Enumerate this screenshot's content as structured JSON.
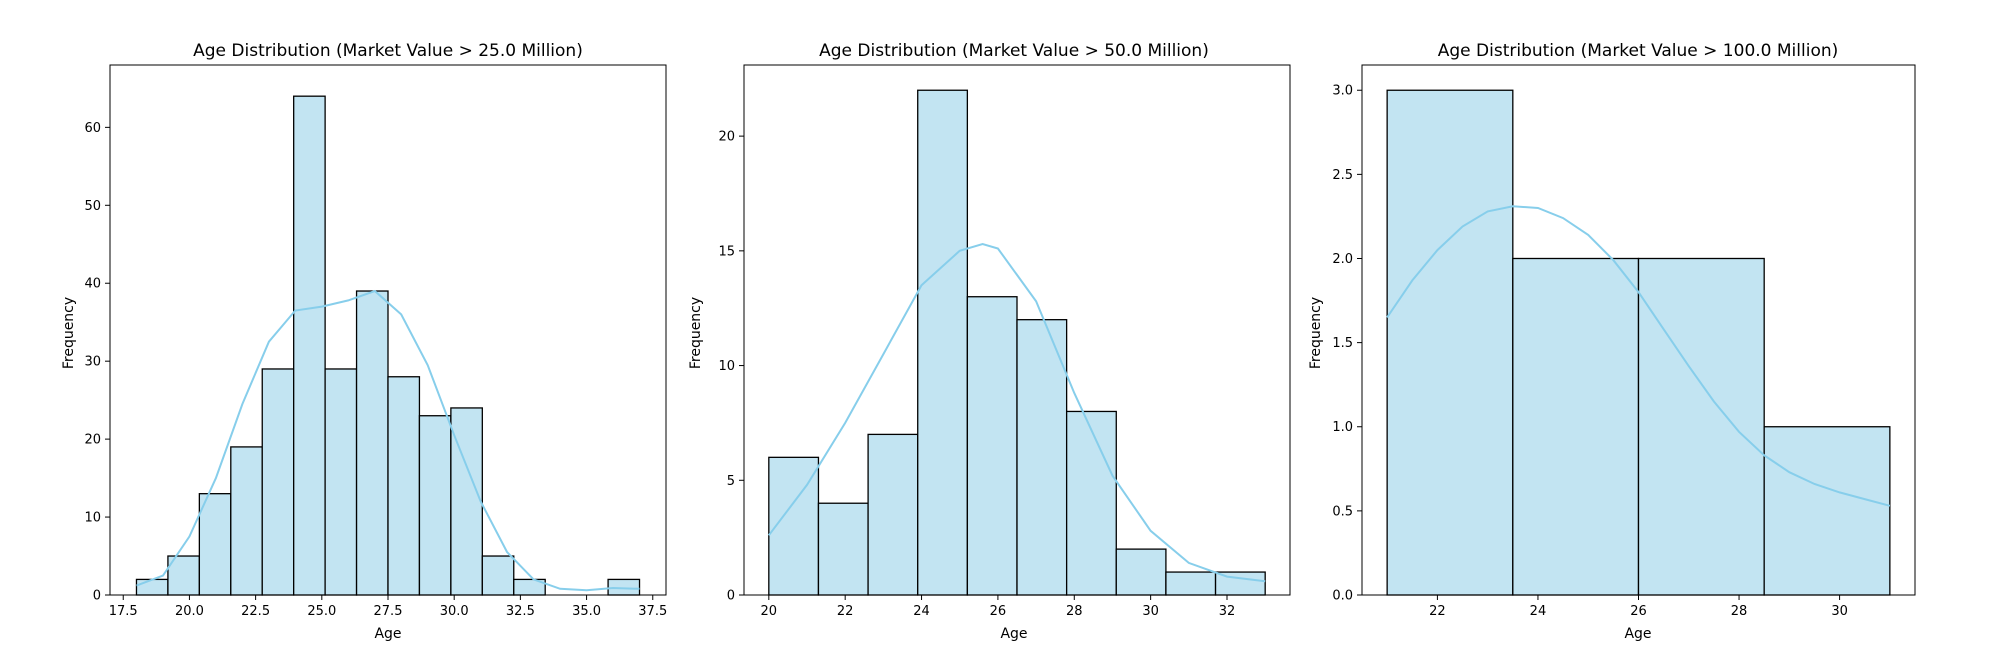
{
  "colors": {
    "bar_fill": "#c2e4f2",
    "bar_edge": "#000000",
    "kde_line": "#87ceeb"
  },
  "chart_data": [
    {
      "type": "bar",
      "subtype": "histogram-with-kde",
      "title": "Age Distribution (Market Value > 25.0 Million)",
      "xlabel": "Age",
      "ylabel": "Frequency",
      "xlim": [
        17.0,
        38.0
      ],
      "ylim": [
        0,
        68
      ],
      "xticks": [
        17.5,
        20.0,
        22.5,
        25.0,
        27.5,
        30.0,
        32.5,
        35.0,
        37.5
      ],
      "xtick_labels": [
        "17.5",
        "20.0",
        "22.5",
        "25.0",
        "27.5",
        "30.0",
        "32.5",
        "35.0",
        "37.5"
      ],
      "yticks": [
        0,
        10,
        20,
        30,
        40,
        50,
        60
      ],
      "ytick_labels": [
        "0",
        "10",
        "20",
        "30",
        "40",
        "50",
        "60"
      ],
      "bin_edges": [
        18.0,
        19.1875,
        20.375,
        21.5625,
        22.75,
        23.9375,
        25.125,
        26.3125,
        27.5,
        28.6875,
        29.875,
        31.0625,
        32.25,
        33.4375,
        34.625,
        35.8125,
        37.0
      ],
      "values": [
        2,
        5,
        13,
        19,
        29,
        64,
        29,
        39,
        28,
        23,
        24,
        5,
        2,
        0,
        0,
        2
      ],
      "kde": {
        "x": [
          18.0,
          19.0,
          20.0,
          21.0,
          22.0,
          23.0,
          24.0,
          25.0,
          26.0,
          27.0,
          28.0,
          29.0,
          30.0,
          31.0,
          32.0,
          33.0,
          34.0,
          35.0,
          36.0,
          37.0
        ],
        "y": [
          1.2,
          2.5,
          7.5,
          15.0,
          24.5,
          32.5,
          36.5,
          37.0,
          37.8,
          39.0,
          36.0,
          29.5,
          20.5,
          12.0,
          5.5,
          2.0,
          0.8,
          0.6,
          0.9,
          0.8
        ]
      },
      "grid": false,
      "legend": "none"
    },
    {
      "type": "bar",
      "subtype": "histogram-with-kde",
      "title": "Age Distribution (Market Value > 50.0 Million)",
      "xlabel": "Age",
      "ylabel": "Frequency",
      "xlim": [
        19.35,
        33.65
      ],
      "ylim": [
        0,
        23.1
      ],
      "xticks": [
        20,
        22,
        24,
        26,
        28,
        30,
        32
      ],
      "xtick_labels": [
        "20",
        "22",
        "24",
        "26",
        "28",
        "30",
        "32"
      ],
      "yticks": [
        0,
        5,
        10,
        15,
        20
      ],
      "ytick_labels": [
        "0",
        "5",
        "10",
        "15",
        "20"
      ],
      "bin_edges": [
        20.0,
        21.3,
        22.6,
        23.9,
        25.2,
        26.5,
        27.8,
        29.1,
        30.4,
        31.7,
        33.0
      ],
      "values": [
        6,
        4,
        7,
        22,
        13,
        12,
        8,
        2,
        1,
        1
      ],
      "kde": {
        "x": [
          20.0,
          21.0,
          22.0,
          23.0,
          24.0,
          25.0,
          25.6,
          26.0,
          27.0,
          28.0,
          29.0,
          30.0,
          31.0,
          32.0,
          33.0
        ],
        "y": [
          2.6,
          4.8,
          7.5,
          10.5,
          13.5,
          15.0,
          15.3,
          15.1,
          12.8,
          8.8,
          5.2,
          2.8,
          1.4,
          0.8,
          0.6
        ]
      },
      "grid": false,
      "legend": "none"
    },
    {
      "type": "bar",
      "subtype": "histogram-with-kde",
      "title": "Age Distribution (Market Value > 100.0 Million)",
      "xlabel": "Age",
      "ylabel": "Frequency",
      "xlim": [
        20.5,
        31.5
      ],
      "ylim": [
        0,
        3.15
      ],
      "xticks": [
        22,
        24,
        26,
        28,
        30
      ],
      "xtick_labels": [
        "22",
        "24",
        "26",
        "28",
        "30"
      ],
      "yticks": [
        0.0,
        0.5,
        1.0,
        1.5,
        2.0,
        2.5,
        3.0
      ],
      "ytick_labels": [
        "0.0",
        "0.5",
        "1.0",
        "1.5",
        "2.0",
        "2.5",
        "3.0"
      ],
      "bin_edges": [
        21.0,
        23.5,
        26.0,
        28.5,
        31.0
      ],
      "values": [
        3,
        2,
        2,
        1
      ],
      "kde": {
        "x": [
          21.0,
          21.5,
          22.0,
          22.5,
          23.0,
          23.5,
          24.0,
          24.5,
          25.0,
          25.5,
          26.0,
          26.5,
          27.0,
          27.5,
          28.0,
          28.5,
          29.0,
          29.5,
          30.0,
          30.5,
          31.0
        ],
        "y": [
          1.65,
          1.87,
          2.05,
          2.19,
          2.28,
          2.31,
          2.3,
          2.24,
          2.14,
          1.99,
          1.8,
          1.58,
          1.36,
          1.15,
          0.97,
          0.83,
          0.73,
          0.66,
          0.61,
          0.57,
          0.53
        ]
      },
      "grid": false,
      "legend": "none"
    }
  ]
}
